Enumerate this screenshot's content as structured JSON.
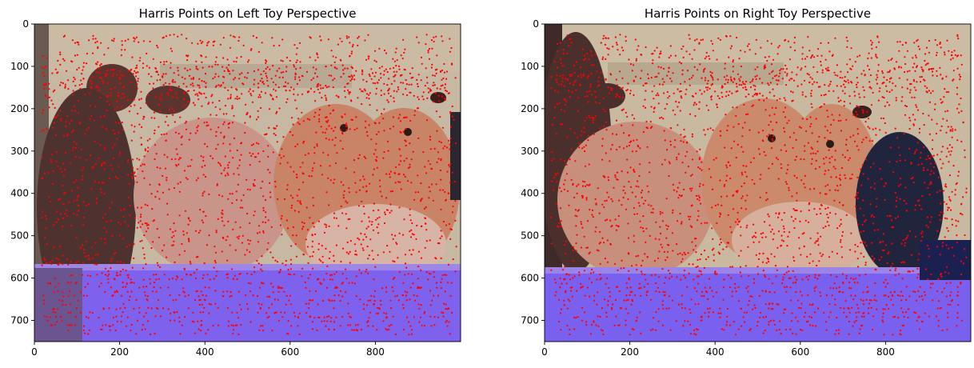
{
  "chart_data": [
    {
      "type": "scatter",
      "title": "Harris Points on Left Toy Perspective",
      "xlim": [
        0,
        1000
      ],
      "ylim": [
        750,
        0
      ],
      "xticks": [
        0,
        200,
        400,
        600,
        800
      ],
      "yticks": [
        0,
        100,
        200,
        300,
        400,
        500,
        600,
        700
      ],
      "grid": false,
      "point_color": "#ff0000",
      "photo_palette": {
        "wall": "#c6b8a2",
        "bear": "#5a3530",
        "plush_left": "#c9958a",
        "plush_right": "#c98468",
        "table": "#7e62ee",
        "shadow": "#4e4048"
      }
    },
    {
      "type": "scatter",
      "title": "Harris Points on Right Toy Perspective",
      "xlim": [
        0,
        1000
      ],
      "ylim": [
        750,
        0
      ],
      "xticks": [
        0,
        200,
        400,
        600,
        800
      ],
      "yticks": [
        0,
        100,
        200,
        300,
        400,
        500,
        600,
        700
      ],
      "grid": false,
      "point_color": "#ff0000",
      "photo_palette": {
        "wall": "#c9b9a0",
        "bear": "#4a2f2c",
        "plush_left": "#c8907c",
        "plush_right": "#cc8a6c",
        "table": "#7a60ef",
        "shadow": "#20243c"
      }
    }
  ]
}
